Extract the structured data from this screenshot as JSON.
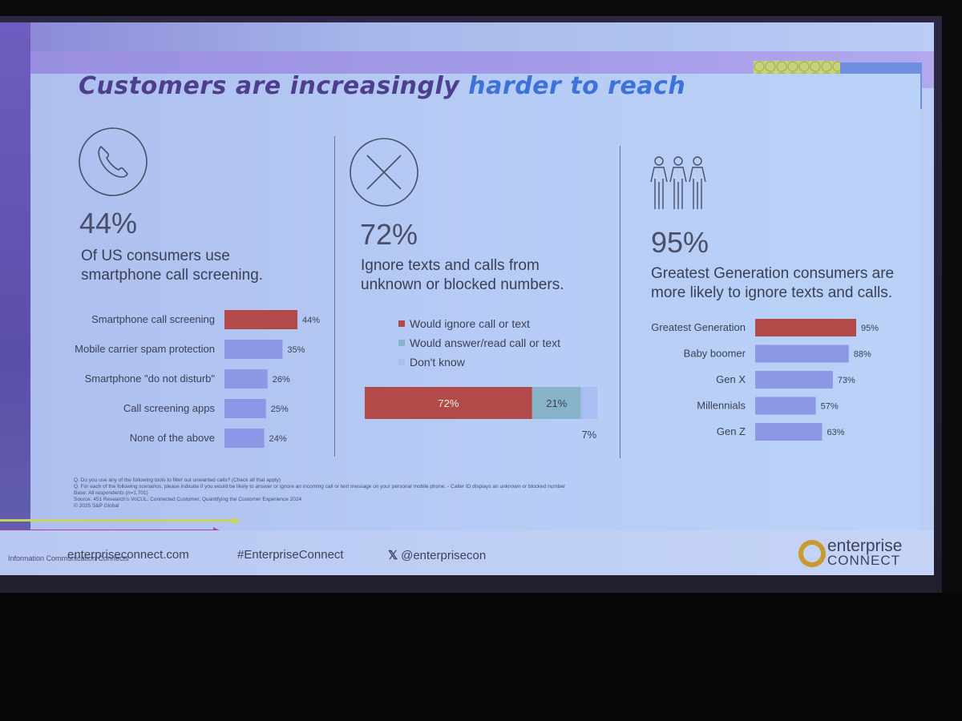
{
  "slide": {
    "title_part1": "Customers are increasingly",
    "title_part2": "harder to reach"
  },
  "colors": {
    "accent_red": "#b24a4a",
    "bar_blue": "#8c97e6",
    "bar_teal": "#86b3c7",
    "bar_lightblue": "#a9bff3",
    "title_purple": "#4e3f8e",
    "title_blue": "#3d72d8"
  },
  "left_panel": {
    "icon": "phone-icon",
    "stat": "44%",
    "desc_line1": "Of US consumers use",
    "desc_line2": "smartphone call screening."
  },
  "middle_panel": {
    "icon": "x-circle-icon",
    "stat": "72%",
    "desc_line1": "Ignore texts and calls from",
    "desc_line2": "unknown or blocked numbers.",
    "legend": [
      "Would ignore call or text",
      "Would answer/read call or text",
      "Don't know"
    ]
  },
  "right_panel": {
    "icon": "people-group-icon",
    "stat": "95%",
    "desc_line1": "Greatest Generation consumers are",
    "desc_line2": "more likely to ignore texts and calls."
  },
  "chart_data": [
    {
      "type": "bar",
      "orientation": "horizontal",
      "categories": [
        "Smartphone call screening",
        "Mobile carrier spam protection",
        "Smartphone \"do not disturb\"",
        "Call screening apps",
        "None of the above"
      ],
      "values": [
        44,
        35,
        26,
        25,
        24
      ],
      "value_labels": [
        "44%",
        "35%",
        "26%",
        "25%",
        "24%"
      ],
      "highlight_index": 0
    },
    {
      "type": "bar",
      "orientation": "horizontal-stacked",
      "series": [
        {
          "name": "Would ignore call or text",
          "values": [
            72
          ],
          "label": "72%"
        },
        {
          "name": "Would answer/read call or text",
          "values": [
            21
          ],
          "label": "21%"
        },
        {
          "name": "Don't know",
          "values": [
            7
          ],
          "label": "7%"
        }
      ]
    },
    {
      "type": "bar",
      "orientation": "horizontal",
      "categories": [
        "Greatest Generation",
        "Baby boomer",
        "Gen X",
        "Millennials",
        "Gen Z"
      ],
      "values": [
        95,
        88,
        73,
        57,
        63
      ],
      "value_labels": [
        "95%",
        "88%",
        "73%",
        "57%",
        "63%"
      ],
      "highlight_index": 0
    }
  ],
  "footnotes": [
    "Q. Do you use any of the following tools to filter out unwanted calls? (Check all that apply)",
    "Q. For each of the following scenarios, please indicate if you would be likely to answer or ignore an incoming call or text message on your personal mobile phone. - Caller ID displays an unknown or blocked number",
    "Base: All respondents (n=1,701)",
    "Source: 451 Research's VoCUL: Connected Customer, Quantifying the Customer Experience 2024",
    "© 2025 S&P Global"
  ],
  "footer": {
    "website": "enterpriseconnect.com",
    "hashtag": "#EnterpriseConnect",
    "x_handle": "@enterprisecon",
    "left_small": "Information Communication Connects",
    "logo_line1": "enterprise",
    "logo_line2": "CONNECT"
  }
}
